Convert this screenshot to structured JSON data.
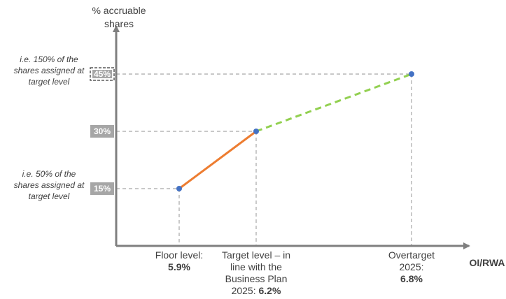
{
  "chart_data": {
    "type": "line",
    "ylabel_lines": [
      "% accruable",
      "shares"
    ],
    "xlabel": "OI/RWA",
    "y_ticks": [
      {
        "label": "15%",
        "value": 15
      },
      {
        "label": "30%",
        "value": 30
      },
      {
        "label": "45%",
        "value": 45
      }
    ],
    "y_notes": [
      {
        "value": 45,
        "lines": [
          "i.e. 150% of the",
          "shares assigned at",
          "target level"
        ]
      },
      {
        "value": 15,
        "lines": [
          "i.e. 50% of the",
          "shares assigned at",
          "target level"
        ]
      }
    ],
    "points": [
      {
        "x": 5.9,
        "y": 15,
        "label_lines": [
          {
            "text": "Floor level:"
          },
          {
            "text": "5.9%",
            "bold": true
          }
        ]
      },
      {
        "x": 6.2,
        "y": 30,
        "label_lines": [
          {
            "text": "Target level – in"
          },
          {
            "text": "line with the"
          },
          {
            "text": "Business Plan"
          },
          {
            "text": "2025: ",
            "bold_suffix": "6.2%"
          }
        ]
      },
      {
        "x": 6.8,
        "y": 45,
        "label_lines": [
          {
            "text": "Overtarget"
          },
          {
            "text": "2025:"
          },
          {
            "text": "6.8%",
            "bold": true
          }
        ]
      }
    ],
    "series": [
      {
        "segment": [
          0,
          1
        ],
        "color": "#ED7D31",
        "style": "solid"
      },
      {
        "segment": [
          1,
          2
        ],
        "color": "#92D050",
        "style": "dashed"
      }
    ],
    "colors": {
      "axis": "#7F7F7F",
      "guide": "#A6A6A6",
      "tick_box": "#A6A6A6",
      "tick_box_dark": "#595959",
      "point": "#4472C4"
    }
  }
}
